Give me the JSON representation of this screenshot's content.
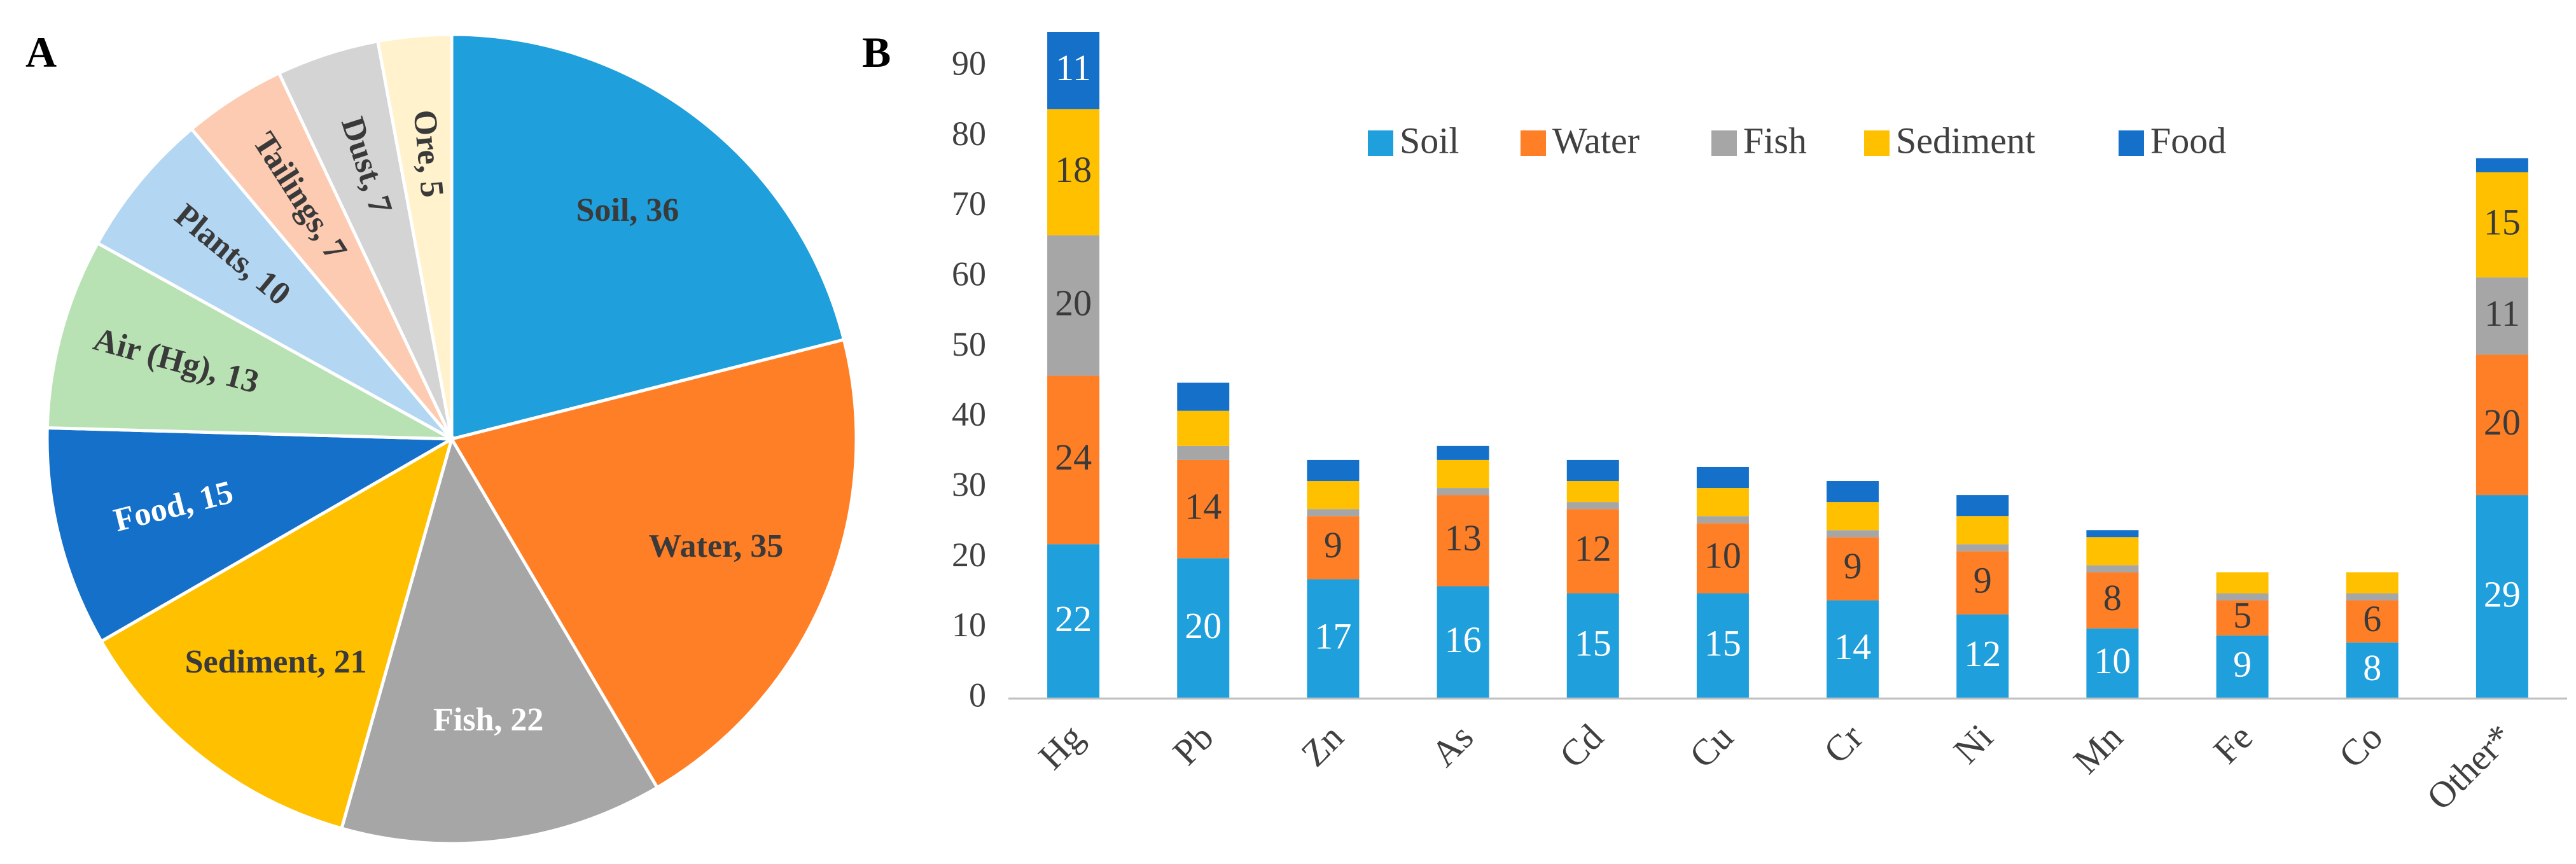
{
  "panels": {
    "a": "A",
    "b": "B"
  },
  "chart_data": [
    {
      "type": "pie",
      "panel": "A",
      "slices": [
        {
          "label": "Soil",
          "value": 36,
          "color": "#1F9FDB",
          "text_color": "#3A3A3A"
        },
        {
          "label": "Water",
          "value": 35,
          "color": "#FF7F27",
          "text_color": "#3A3A3A"
        },
        {
          "label": "Fish",
          "value": 22,
          "color": "#A6A6A6",
          "text_color": "#FFFFFF"
        },
        {
          "label": "Sediment",
          "value": 21,
          "color": "#FFC000",
          "text_color": "#3A3A3A"
        },
        {
          "label": "Food",
          "value": 15,
          "color": "#1570C9",
          "text_color": "#FFFFFF"
        },
        {
          "label": "Air (Hg)",
          "value": 13,
          "color": "#B9E2B4",
          "text_color": "#3A3A3A"
        },
        {
          "label": "Plants",
          "value": 10,
          "color": "#B3D6F2",
          "text_color": "#3A3A3A"
        },
        {
          "label": "Tailings",
          "value": 7,
          "color": "#FCCBB1",
          "text_color": "#3A3A3A"
        },
        {
          "label": "Dust",
          "value": 7,
          "color": "#D4D4D4",
          "text_color": "#3A3A3A"
        },
        {
          "label": "Ore",
          "value": 5,
          "color": "#FFF2CC",
          "text_color": "#3A3A3A"
        }
      ]
    },
    {
      "type": "bar",
      "stacked": true,
      "panel": "B",
      "categories": [
        "Hg",
        "Pb",
        "Zn",
        "As",
        "Cd",
        "Cu",
        "Cr",
        "Ni",
        "Mn",
        "Fe",
        "Co",
        "Other*"
      ],
      "series": [
        {
          "name": "Soil",
          "color": "#1F9FDB",
          "values": [
            22,
            20,
            17,
            16,
            15,
            15,
            14,
            12,
            10,
            9,
            8,
            29
          ],
          "labels": [
            "22",
            "20",
            "17",
            "16",
            "15",
            "15",
            "14",
            "12",
            "10",
            "9",
            "8",
            "29"
          ],
          "label_color": "#FFFFFF"
        },
        {
          "name": "Water",
          "color": "#FF7F27",
          "values": [
            24,
            14,
            9,
            13,
            12,
            10,
            9,
            9,
            8,
            5,
            6,
            20
          ],
          "labels": [
            "24",
            "14",
            "9",
            "13",
            "12",
            "10",
            "9",
            "9",
            "8",
            "5",
            "6",
            "20"
          ],
          "label_color": "#3A3A3A"
        },
        {
          "name": "Fish",
          "color": "#A6A6A6",
          "values": [
            20,
            2,
            1,
            1,
            1,
            1,
            1,
            1,
            1,
            1,
            1,
            11
          ],
          "labels": [
            "20",
            "",
            "",
            "",
            "",
            "",
            "",
            "",
            "",
            "",
            "",
            "11"
          ],
          "label_color": "#3A3A3A"
        },
        {
          "name": "Sediment",
          "color": "#FFC000",
          "values": [
            18,
            5,
            4,
            4,
            3,
            4,
            4,
            4,
            4,
            3,
            3,
            15
          ],
          "labels": [
            "18",
            "",
            "",
            "",
            "",
            "",
            "",
            "",
            "",
            "",
            "",
            "15"
          ],
          "label_color": "#3A3A3A"
        },
        {
          "name": "Food",
          "color": "#1570C9",
          "values": [
            11,
            4,
            3,
            2,
            3,
            3,
            3,
            3,
            1,
            0,
            0,
            2
          ],
          "labels": [
            "11",
            "",
            "",
            "",
            "",
            "",
            "",
            "",
            "",
            "",
            "",
            ""
          ],
          "label_color": "#FFFFFF"
        }
      ],
      "ylim": [
        0,
        95
      ],
      "yticks": [
        0,
        10,
        20,
        30,
        40,
        50,
        60,
        70,
        80,
        90
      ],
      "legend_position": "top-center"
    }
  ]
}
